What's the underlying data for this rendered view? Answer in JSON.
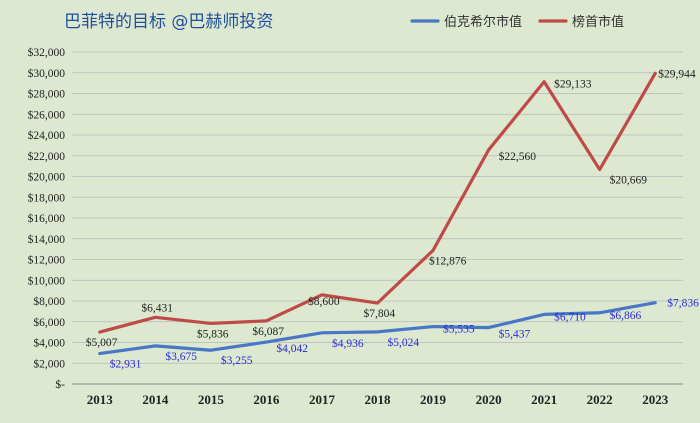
{
  "chart_data": {
    "type": "line",
    "title": "巴菲特的目标 @巴赫师投资",
    "categories": [
      "2013",
      "2014",
      "2015",
      "2016",
      "2017",
      "2018",
      "2019",
      "2020",
      "2021",
      "2022",
      "2023"
    ],
    "ylim": [
      0,
      32000
    ],
    "y_ticks": [
      "$-",
      "$2,000",
      "$4,000",
      "$6,000",
      "$8,000",
      "$10,000",
      "$12,000",
      "$14,000",
      "$16,000",
      "$18,000",
      "$20,000",
      "$22,000",
      "$24,000",
      "$26,000",
      "$28,000",
      "$30,000",
      "$32,000"
    ],
    "grid": true,
    "legend_position": "top-right",
    "series": [
      {
        "name": "伯克希尔市值",
        "color": "#4a76c7",
        "values": [
          2931,
          3675,
          3255,
          4042,
          4936,
          5024,
          5535,
          5437,
          6710,
          6866,
          7836
        ],
        "labels": [
          "$2,931",
          "$3,675",
          "$3,255",
          "$4,042",
          "$4,936",
          "$5,024",
          "$5,535",
          "$5,437",
          "$6,710",
          "$6,866",
          "$7,836"
        ]
      },
      {
        "name": "榜首市值",
        "color": "#bf4b48",
        "values": [
          5007,
          6431,
          5836,
          6087,
          8600,
          7804,
          12876,
          22560,
          29133,
          20669,
          29944
        ],
        "labels": [
          "$5,007",
          "$6,431",
          "$5,836",
          "$6,087",
          "$8,600",
          "$7,804",
          "$12,876",
          "$22,560",
          "$29,133",
          "$20,669",
          "$29,944"
        ]
      }
    ]
  }
}
